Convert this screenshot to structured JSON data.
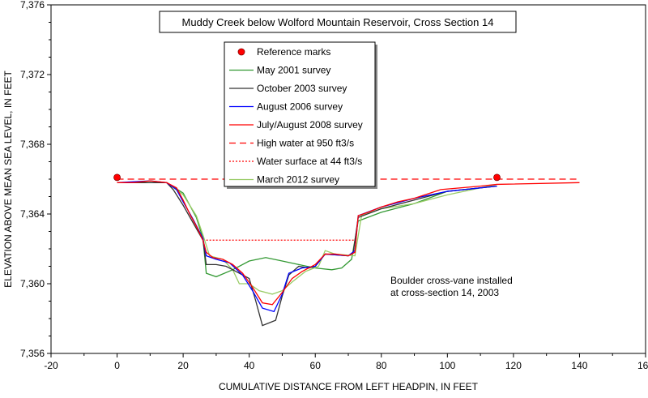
{
  "chart_data": {
    "type": "line",
    "title": "Muddy Creek below Wolford Mountain Reservoir, Cross Section 14",
    "xlabel": "CUMULATIVE  DISTANCE FROM LEFT HEADPIN, IN FEET",
    "ylabel": "ELEVATION ABOVE MEAN SEA LEVEL, IN FEET",
    "xlim": [
      -20,
      160
    ],
    "ylim": [
      7356,
      7376
    ],
    "xticks": [
      -20,
      0,
      20,
      40,
      60,
      80,
      100,
      120,
      140,
      160
    ],
    "yticks": [
      7356,
      7360,
      7364,
      7368,
      7372,
      7376
    ],
    "ytick_labels": [
      "7,356",
      "7,360",
      "7,364",
      "7,368",
      "7,372",
      "7,376"
    ],
    "grid": false,
    "legend_placement": "top-center",
    "annotation": [
      "Boulder cross-vane installed",
      "at cross-section 14, 2003"
    ],
    "reference_marks": {
      "name": "Reference marks",
      "color": "#ff0000",
      "points": [
        [
          0,
          7366.1
        ],
        [
          115,
          7366.1
        ]
      ]
    },
    "series": [
      {
        "name": "May 2001 survey",
        "color": "#339933",
        "style": "solid",
        "points": [
          [
            0,
            7365.8
          ],
          [
            15,
            7365.8
          ],
          [
            20,
            7365.2
          ],
          [
            24,
            7363.8
          ],
          [
            26,
            7362.6
          ],
          [
            27,
            7360.6
          ],
          [
            30,
            7360.4
          ],
          [
            35,
            7360.8
          ],
          [
            40,
            7361.3
          ],
          [
            45,
            7361.5
          ],
          [
            50,
            7361.3
          ],
          [
            55,
            7361.1
          ],
          [
            60,
            7360.9
          ],
          [
            65,
            7360.8
          ],
          [
            68,
            7360.9
          ],
          [
            71,
            7361.4
          ],
          [
            73,
            7363.6
          ],
          [
            80,
            7364.1
          ],
          [
            90,
            7364.6
          ],
          [
            100,
            7365.3
          ],
          [
            115,
            7365.6
          ]
        ]
      },
      {
        "name": "October 2003 survey",
        "color": "#333333",
        "style": "solid",
        "points": [
          [
            0,
            7365.8
          ],
          [
            15,
            7365.8
          ],
          [
            17,
            7365.4
          ],
          [
            20,
            7364.5
          ],
          [
            23,
            7363.5
          ],
          [
            26,
            7362.5
          ],
          [
            27,
            7361.1
          ],
          [
            30,
            7361.1
          ],
          [
            33,
            7361.0
          ],
          [
            37,
            7360.6
          ],
          [
            40,
            7360.3
          ],
          [
            42,
            7359.0
          ],
          [
            44,
            7357.6
          ],
          [
            48,
            7357.9
          ],
          [
            50,
            7359.3
          ],
          [
            52,
            7360.5
          ],
          [
            55,
            7361.0
          ],
          [
            58,
            7360.9
          ],
          [
            60,
            7361.0
          ],
          [
            63,
            7361.7
          ],
          [
            70,
            7361.6
          ],
          [
            71.5,
            7361.8
          ],
          [
            73,
            7363.8
          ],
          [
            80,
            7364.3
          ],
          [
            90,
            7364.8
          ],
          [
            100,
            7365.3
          ],
          [
            115,
            7365.6
          ]
        ]
      },
      {
        "name": "August 2006 survey",
        "color": "#0000ff",
        "style": "solid",
        "points": [
          [
            0,
            7365.8
          ],
          [
            10,
            7365.9
          ],
          [
            15,
            7365.8
          ],
          [
            18,
            7365.4
          ],
          [
            20,
            7364.7
          ],
          [
            23,
            7363.7
          ],
          [
            26,
            7362.6
          ],
          [
            27,
            7361.6
          ],
          [
            30,
            7361.4
          ],
          [
            34,
            7361.2
          ],
          [
            38,
            7360.5
          ],
          [
            41,
            7359.6
          ],
          [
            44,
            7358.6
          ],
          [
            47.5,
            7358.4
          ],
          [
            50,
            7359.4
          ],
          [
            52,
            7360.6
          ],
          [
            56,
            7360.9
          ],
          [
            60,
            7361.0
          ],
          [
            63,
            7361.7
          ],
          [
            70,
            7361.6
          ],
          [
            72,
            7361.9
          ],
          [
            73,
            7363.9
          ],
          [
            80,
            7364.4
          ],
          [
            90,
            7364.9
          ],
          [
            100,
            7365.3
          ],
          [
            115,
            7365.6
          ]
        ]
      },
      {
        "name": "July/August 2008 survey",
        "color": "#ff0000",
        "style": "solid",
        "points": [
          [
            0,
            7365.8
          ],
          [
            5,
            7365.8
          ],
          [
            10,
            7365.9
          ],
          [
            15,
            7365.8
          ],
          [
            18,
            7365.5
          ],
          [
            20,
            7364.8
          ],
          [
            22,
            7364.0
          ],
          [
            24,
            7363.3
          ],
          [
            26,
            7362.5
          ],
          [
            27,
            7361.8
          ],
          [
            29,
            7361.5
          ],
          [
            32,
            7361.4
          ],
          [
            35,
            7361.1
          ],
          [
            38,
            7360.6
          ],
          [
            41,
            7359.8
          ],
          [
            44,
            7358.9
          ],
          [
            47,
            7358.8
          ],
          [
            50,
            7359.5
          ],
          [
            53,
            7360.3
          ],
          [
            56,
            7360.7
          ],
          [
            60,
            7361.1
          ],
          [
            63,
            7361.7
          ],
          [
            66,
            7361.7
          ],
          [
            70,
            7361.6
          ],
          [
            72,
            7361.8
          ],
          [
            73,
            7363.9
          ],
          [
            76,
            7364.1
          ],
          [
            80,
            7364.4
          ],
          [
            85,
            7364.7
          ],
          [
            90,
            7364.9
          ],
          [
            98,
            7365.4
          ],
          [
            110,
            7365.6
          ],
          [
            115,
            7365.7
          ],
          [
            140,
            7365.8
          ]
        ]
      },
      {
        "name": "High water at 950 ft3/s",
        "color": "#ff0000",
        "style": "dashed",
        "points": [
          [
            0,
            7366.0
          ],
          [
            140,
            7366.0
          ]
        ]
      },
      {
        "name": "Water surface at 44 ft3/s",
        "color": "#ff0000",
        "style": "dotted",
        "points": [
          [
            27,
            7362.5
          ],
          [
            72,
            7362.5
          ]
        ]
      },
      {
        "name": "March 2012 survey",
        "color": "#99cc66",
        "style": "solid",
        "points": [
          [
            0,
            7365.8
          ],
          [
            15,
            7365.8
          ],
          [
            20,
            7365.1
          ],
          [
            24,
            7363.9
          ],
          [
            26,
            7362.8
          ],
          [
            28,
            7361.6
          ],
          [
            32,
            7361.4
          ],
          [
            35,
            7360.8
          ],
          [
            37,
            7360.0
          ],
          [
            40,
            7360.0
          ],
          [
            43,
            7359.6
          ],
          [
            47,
            7359.4
          ],
          [
            50,
            7359.6
          ],
          [
            53,
            7360.1
          ],
          [
            57,
            7360.7
          ],
          [
            61,
            7361.0
          ],
          [
            63,
            7361.9
          ],
          [
            66,
            7361.7
          ],
          [
            72,
            7361.6
          ],
          [
            74,
            7363.9
          ],
          [
            80,
            7364.3
          ],
          [
            90,
            7364.6
          ],
          [
            100,
            7365.1
          ],
          [
            115,
            7365.7
          ]
        ]
      }
    ]
  }
}
